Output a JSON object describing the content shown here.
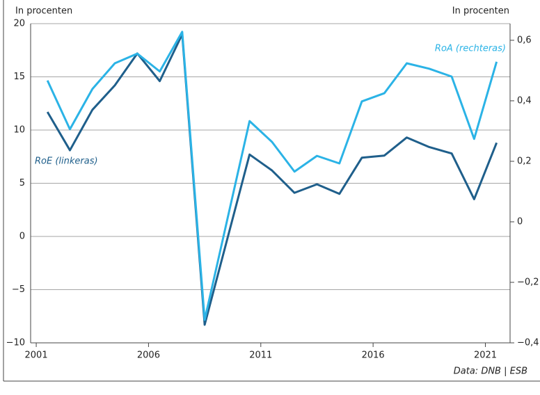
{
  "chart_data": {
    "type": "line",
    "y_label": "In procenten",
    "y2_label": "In procenten",
    "source": "Data: DNB | ESB",
    "x": [
      2001.5,
      2002.5,
      2003.5,
      2004.5,
      2005.5,
      2006.5,
      2007.5,
      2008.5,
      2009.5,
      2010.5,
      2011.5,
      2012.5,
      2013.5,
      2014.5,
      2015.5,
      2016.5,
      2017.5,
      2018.5,
      2019.5,
      2020.5,
      2021.5
    ],
    "xlim": [
      2000.75,
      2022.1
    ],
    "xticks": [
      2001,
      2006,
      2011,
      2016,
      2021
    ],
    "ylim": [
      -10,
      20
    ],
    "yticks": [
      {
        "value": -10,
        "label": "−10"
      },
      {
        "value": -5,
        "label": "−5"
      },
      0,
      5,
      10,
      15,
      20
    ],
    "y2lim": [
      -0.4,
      0.655
    ],
    "y2ticks": [
      {
        "value": -0.4,
        "label": "−0,4"
      },
      {
        "value": -0.2,
        "label": "−0,2"
      },
      0,
      {
        "value": 0.2,
        "label": "0,2"
      },
      {
        "value": 0.4,
        "label": "0,4"
      },
      {
        "value": 0.6,
        "label": "0,6"
      }
    ],
    "grid": true,
    "series": [
      {
        "name": "RoE (linkeras)",
        "color": "#1f5f8b",
        "axis": "y",
        "values": [
          11.7,
          8.1,
          11.9,
          14.2,
          17.2,
          14.6,
          19.0,
          -8.3,
          -0.3,
          7.7,
          6.2,
          4.1,
          4.9,
          4.0,
          7.4,
          7.6,
          9.3,
          8.4,
          7.8,
          3.5,
          8.8
        ]
      },
      {
        "name": "RoA (rechteras)",
        "color": "#2bb3e6",
        "axis": "y2",
        "values": [
          0.467,
          0.306,
          0.439,
          0.524,
          0.556,
          0.497,
          0.628,
          -0.324,
          0.005,
          0.333,
          0.264,
          0.166,
          0.218,
          0.193,
          0.398,
          0.425,
          0.524,
          0.506,
          0.48,
          0.274,
          0.529
        ]
      }
    ]
  }
}
